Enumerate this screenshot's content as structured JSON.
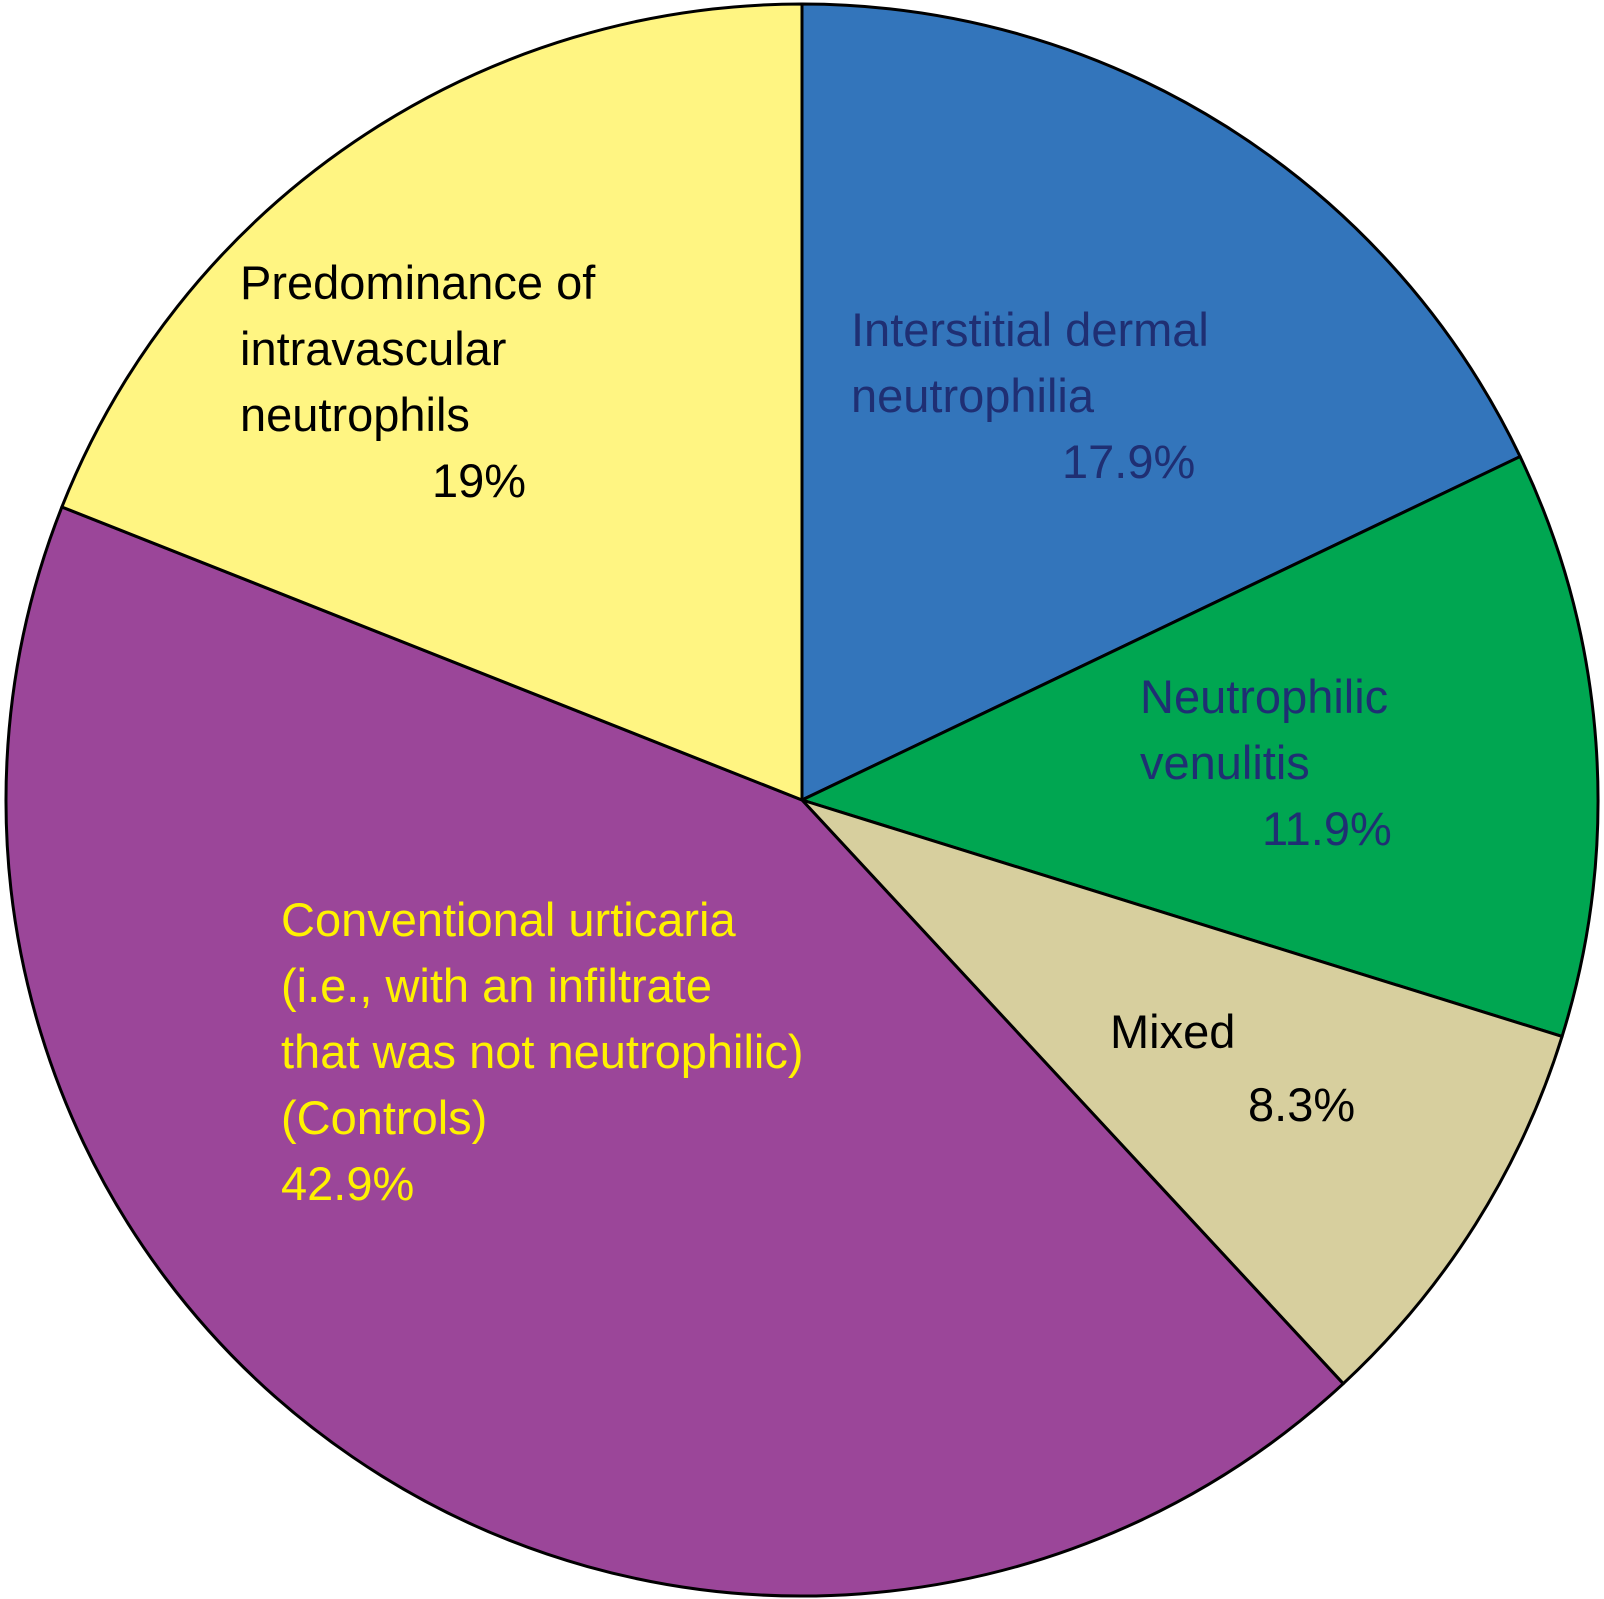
{
  "chart_data": {
    "type": "pie",
    "title": "",
    "slices": [
      {
        "name": "Interstitial dermal neutrophilia",
        "label_lines": [
          "Interstitial dermal",
          "neutrophilia"
        ],
        "value_label": "17.9%",
        "value": 17.9,
        "color": "#3375BB",
        "text_color": "#1F2F73"
      },
      {
        "name": "Neutrophilic venulitis",
        "label_lines": [
          "Neutrophilic",
          "venulitis"
        ],
        "value_label": "11.9%",
        "value": 11.9,
        "color": "#00A651",
        "text_color": "#1F2F73"
      },
      {
        "name": "Mixed",
        "label_lines": [
          "Mixed"
        ],
        "value_label": "8.3%",
        "value": 8.3,
        "color": "#D7CF9E",
        "text_color": "#000000"
      },
      {
        "name": "Conventional urticaria (i.e., with an infiltrate that was not neutrophilic) (Controls)",
        "label_lines": [
          "Conventional urticaria",
          "(i.e., with an infiltrate",
          "that was not neutrophilic)",
          "(Controls)"
        ],
        "value_label": "42.9%",
        "value": 42.9,
        "color": "#9B4699",
        "text_color": "#FFF200"
      },
      {
        "name": "Predominance of intravascular neutrophils",
        "label_lines": [
          "Predominance of",
          "intravascular",
          "neutrophils"
        ],
        "value_label": "19%",
        "value": 19,
        "color": "#FFF582",
        "text_color": "#000000"
      }
    ]
  }
}
